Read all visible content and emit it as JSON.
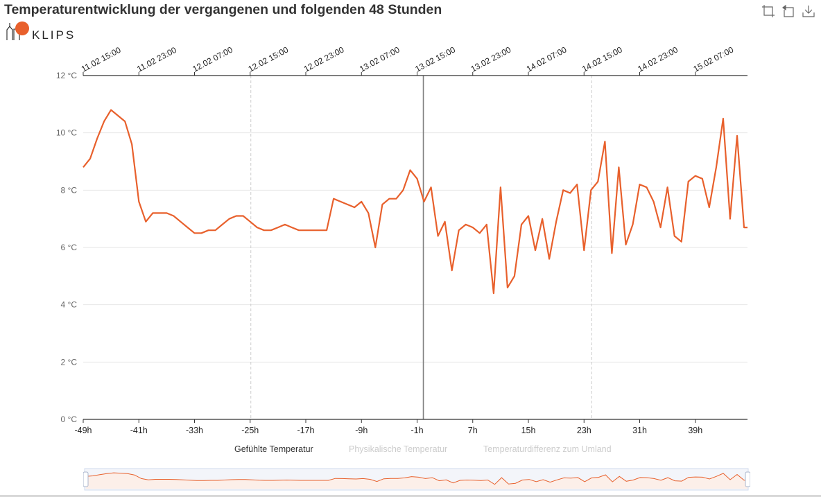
{
  "title": "Temperaturentwicklung der vergangenen und folgenden 48 Stunden",
  "logo_text": "KLIPS",
  "toolbox": {
    "icons": [
      "zoom-icon",
      "restore-icon",
      "download-icon"
    ]
  },
  "colors": {
    "series": "#e8602c",
    "axis": "#333333",
    "grid": "#e6e6e6",
    "marker": "#7f7f7f",
    "day_line": "#cccccc"
  },
  "legend": {
    "items": [
      {
        "label": "Gefühlte Temperatur",
        "active": true
      },
      {
        "label": "Physikalische Temperatur",
        "active": false
      },
      {
        "label": "Temperaturdifferenz zum Umland",
        "active": false
      }
    ]
  },
  "chart_data": {
    "type": "line",
    "title": "Temperaturentwicklung der vergangenen und folgenden 48 Stunden",
    "x_ticks_bottom": [
      "-49h",
      "-41h",
      "-33h",
      "-25h",
      "-17h",
      "-9h",
      "-1h",
      "7h",
      "15h",
      "23h",
      "31h",
      "39h"
    ],
    "x_ticks_top": [
      "11.02 15:00",
      "11.02 23:00",
      "12.02 07:00",
      "12.02 15:00",
      "12.02 23:00",
      "13.02 07:00",
      "13.02 15:00",
      "13.02 23:00",
      "14.02 07:00",
      "14.02 15:00",
      "14.02 23:00",
      "15.02 07:00"
    ],
    "y_ticks": [
      "0 °C",
      "2 °C",
      "4 °C",
      "6 °C",
      "8 °C",
      "10 °C",
      "12 °C"
    ],
    "ylim": [
      0,
      12
    ],
    "xlim": [
      -49,
      46.5
    ],
    "current_time_marker": -0.1,
    "day_boundaries": [
      -24.9,
      24.1
    ],
    "grid": true,
    "series": [
      {
        "name": "Gefühlte Temperatur",
        "x": [
          -49,
          -48,
          -47,
          -46,
          -45,
          -44,
          -43,
          -42,
          -41,
          -40,
          -39,
          -38,
          -37,
          -36,
          -35,
          -34,
          -33,
          -32,
          -31,
          -30,
          -29,
          -28,
          -27,
          -26,
          -25,
          -24,
          -23,
          -22,
          -21,
          -20,
          -19,
          -18,
          -17,
          -16,
          -15,
          -14,
          -13,
          -12,
          -11,
          -10,
          -9,
          -8,
          -7,
          -6,
          -5,
          -4,
          -3,
          -2,
          -1,
          0,
          1,
          2,
          3,
          4,
          5,
          6,
          7,
          8,
          9,
          10,
          11,
          12,
          13,
          14,
          15,
          16,
          17,
          18,
          19,
          20,
          21,
          22,
          23,
          24,
          25,
          26,
          27,
          28,
          29,
          30,
          31,
          32,
          33,
          34,
          35,
          36,
          37,
          38,
          39,
          40,
          41,
          42,
          43,
          44,
          45,
          46,
          46.5
        ],
        "values": [
          8.8,
          9.1,
          9.8,
          10.4,
          10.8,
          10.6,
          10.4,
          9.6,
          7.6,
          6.9,
          7.2,
          7.2,
          7.2,
          7.1,
          6.9,
          6.7,
          6.5,
          6.5,
          6.6,
          6.6,
          6.8,
          7.0,
          7.1,
          7.1,
          6.9,
          6.7,
          6.6,
          6.6,
          6.7,
          6.8,
          6.7,
          6.6,
          6.6,
          6.6,
          6.6,
          6.6,
          7.7,
          7.6,
          7.5,
          7.4,
          7.6,
          7.2,
          6.0,
          7.5,
          7.7,
          7.7,
          8.0,
          8.7,
          8.4,
          7.6,
          8.1,
          6.4,
          6.9,
          5.2,
          6.6,
          6.8,
          6.7,
          6.5,
          6.8,
          4.4,
          8.1,
          4.6,
          5.0,
          6.8,
          7.1,
          5.9,
          7.0,
          5.6,
          6.9,
          8.0,
          7.9,
          8.2,
          5.9,
          8.0,
          8.3,
          9.7,
          5.8,
          8.8,
          6.1,
          6.8,
          8.2,
          8.1,
          7.6,
          6.7,
          8.1,
          6.4,
          6.2,
          8.3,
          8.5,
          8.4,
          7.4,
          8.8,
          10.5,
          7.0,
          9.9,
          6.7,
          6.7
        ]
      }
    ]
  }
}
